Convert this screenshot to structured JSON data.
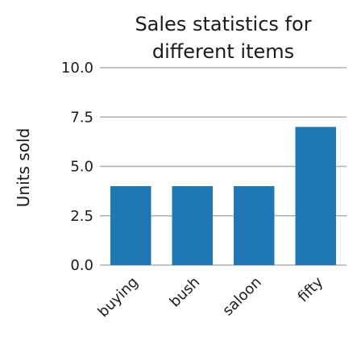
{
  "chart_data": {
    "type": "bar",
    "title_lines": [
      "Sales statistics for",
      "different items"
    ],
    "xlabel": "",
    "ylabel": "Units sold",
    "categories": [
      "buying",
      "bush",
      "saloon",
      "fifty"
    ],
    "values": [
      4,
      4,
      4,
      7
    ],
    "ylim": [
      0,
      10
    ],
    "yticks": [
      "0.0",
      "2.5",
      "5.0",
      "7.5",
      "10.0"
    ],
    "ytick_values": [
      0,
      2.5,
      5,
      7.5,
      10
    ],
    "grid": true,
    "bar_color": "#1f77b4",
    "grid_color": "#b0b0b0"
  }
}
